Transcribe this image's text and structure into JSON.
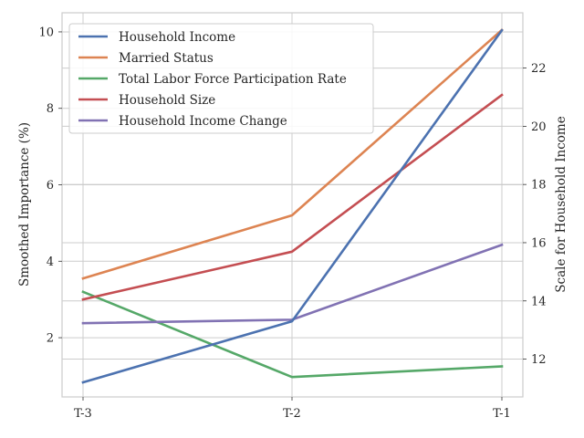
{
  "chart_data": {
    "type": "line",
    "categories": [
      "T-3",
      "T-2",
      "T-1"
    ],
    "ylabel": "Smoothed Importance (%)",
    "ylabel_right": "Scale for Household Income",
    "ylim": [
      0.45,
      10.5
    ],
    "yticks": [
      2,
      4,
      6,
      8,
      10
    ],
    "ylim_right": [
      10.7,
      23.9
    ],
    "yticks_right": [
      12,
      14,
      16,
      18,
      20,
      22
    ],
    "grid": true,
    "legend_position": "upper-left",
    "series": [
      {
        "name": "Household Income",
        "values": [
          11.2,
          13.3,
          23.3
        ],
        "color": "#4c72b0",
        "axis": "right"
      },
      {
        "name": "Married Status",
        "values": [
          3.55,
          5.2,
          10.05
        ],
        "color": "#dd8452",
        "axis": "left"
      },
      {
        "name": "Total Labor Force Participation Rate",
        "values": [
          3.2,
          0.97,
          1.25
        ],
        "color": "#55a868",
        "axis": "left"
      },
      {
        "name": "Household Size",
        "values": [
          3.0,
          4.25,
          8.35
        ],
        "color": "#c44e52",
        "axis": "left"
      },
      {
        "name": "Household Income Change",
        "values": [
          2.38,
          2.47,
          4.43
        ],
        "color": "#8172b3",
        "axis": "left"
      }
    ]
  }
}
